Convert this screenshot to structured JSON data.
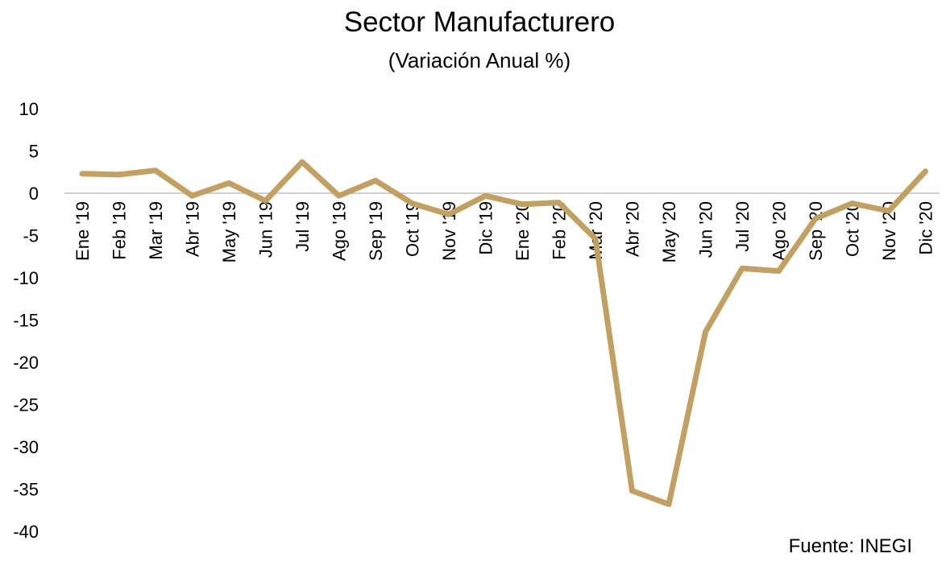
{
  "chart_data": {
    "type": "line",
    "title": "Sector Manufacturero",
    "subtitle": "(Variación Anual %)",
    "xlabel": "",
    "ylabel": "",
    "ylim": [
      -40,
      10
    ],
    "yticks": [
      10,
      5,
      0,
      -5,
      -10,
      -15,
      -20,
      -25,
      -30,
      -35,
      -40
    ],
    "grid": false,
    "line_color": "#C2A061",
    "zero_line_color": "#D0D0D0",
    "categories": [
      "Ene '19",
      "Feb '19",
      "Mar '19",
      "Abr '19",
      "May '19",
      "Jun '19",
      "Jul '19",
      "Ago '19",
      "Sep '19",
      "Oct '19",
      "Nov '19",
      "Dic '19",
      "Ene '20",
      "Feb '20",
      "Mar '20",
      "Abr '20",
      "May '20",
      "Jun '20",
      "Jul '20",
      "Ago '20",
      "Sep '20",
      "Oct '20",
      "Nov '20",
      "Dic '20"
    ],
    "series": [
      {
        "values": [
          2.3,
          2.2,
          2.7,
          -0.3,
          1.2,
          -0.9,
          3.7,
          -0.3,
          1.5,
          -1.2,
          -2.5,
          -0.3,
          -1.3,
          -1.1,
          -5.4,
          -35.2,
          -36.8,
          -16.4,
          -8.9,
          -9.2,
          -3.0,
          -1.2,
          -2.1,
          2.6
        ]
      }
    ]
  },
  "source": "Fuente: INEGI"
}
